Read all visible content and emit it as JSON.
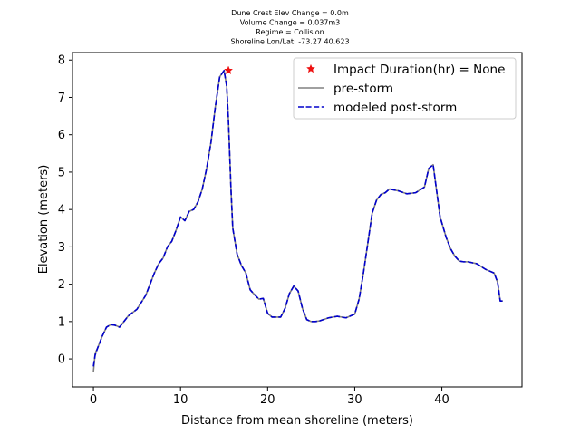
{
  "chart_data": {
    "type": "line",
    "title_lines": [
      "Dune Crest Elev Change = 0.0m",
      "Volume Change = 0.037m3",
      "Regime = Collision",
      "Shoreline Lon/Lat: -73.27 40.623"
    ],
    "xlabel": "Distance from mean shoreline (meters)",
    "ylabel": "Elevation (meters)",
    "xlim": [
      -2.4,
      49.2
    ],
    "ylim": [
      -0.75,
      8.2
    ],
    "xticks": [
      0,
      10,
      20,
      30,
      40
    ],
    "yticks": [
      0,
      1,
      2,
      3,
      4,
      5,
      6,
      7,
      8
    ],
    "grid": false,
    "legend_position": "top-right",
    "colors": {
      "pre": "#808080",
      "post": "#0000cc",
      "marker": "#ee1111"
    },
    "marker": {
      "name": "Impact Duration(hr) = None",
      "x": 15.5,
      "y": 7.72,
      "shape": "star"
    },
    "series": [
      {
        "name": "pre-storm",
        "style": "solid",
        "x": [
          0,
          0.2,
          0.5,
          1,
          1.5,
          2,
          2.5,
          3,
          3.5,
          4,
          5,
          6,
          7,
          7.5,
          8,
          8.5,
          9,
          9.5,
          10,
          10.5,
          11,
          11.5,
          12,
          12.5,
          13,
          13.5,
          14,
          14.5,
          15,
          15.3,
          15.5,
          15.8,
          16,
          16.5,
          17,
          17.5,
          18,
          18.5,
          19,
          19.5,
          20,
          20.5,
          21,
          21.5,
          22,
          22.5,
          23,
          23.5,
          24,
          24.5,
          25,
          25.5,
          26,
          27,
          28,
          29,
          30,
          30.5,
          31,
          31.5,
          32,
          32.5,
          33,
          33.5,
          34,
          35,
          36,
          37,
          38,
          38.5,
          39,
          39.4,
          39.8,
          40.5,
          41,
          41.5,
          42,
          42.5,
          43,
          44,
          45,
          45.5,
          46,
          46.4,
          46.7,
          47
        ],
        "y": [
          -0.35,
          0.15,
          0.3,
          0.6,
          0.85,
          0.92,
          0.9,
          0.85,
          1.0,
          1.15,
          1.33,
          1.7,
          2.3,
          2.55,
          2.7,
          3.0,
          3.15,
          3.45,
          3.8,
          3.7,
          3.95,
          4.0,
          4.2,
          4.55,
          5.1,
          5.8,
          6.75,
          7.55,
          7.72,
          7.3,
          6.4,
          4.5,
          3.5,
          2.8,
          2.5,
          2.3,
          1.85,
          1.72,
          1.6,
          1.62,
          1.22,
          1.12,
          1.12,
          1.12,
          1.35,
          1.75,
          1.95,
          1.82,
          1.35,
          1.05,
          1.0,
          1.0,
          1.02,
          1.1,
          1.14,
          1.1,
          1.2,
          1.6,
          2.3,
          3.1,
          3.9,
          4.25,
          4.4,
          4.45,
          4.55,
          4.5,
          4.42,
          4.45,
          4.6,
          5.1,
          5.2,
          4.5,
          3.8,
          3.25,
          2.95,
          2.75,
          2.62,
          2.6,
          2.6,
          2.55,
          2.4,
          2.35,
          2.3,
          2.05,
          1.55,
          1.55
        ]
      },
      {
        "name": "modeled post-storm",
        "style": "dashed",
        "x": [
          0,
          0.2,
          0.5,
          1,
          1.5,
          2,
          2.5,
          3,
          3.5,
          4,
          5,
          6,
          7,
          7.5,
          8,
          8.5,
          9,
          9.5,
          10,
          10.5,
          11,
          11.5,
          12,
          12.5,
          13,
          13.5,
          14,
          14.5,
          15,
          15.3,
          15.5,
          15.8,
          16,
          16.5,
          17,
          17.5,
          18,
          18.5,
          19,
          19.5,
          20,
          20.5,
          21,
          21.5,
          22,
          22.5,
          23,
          23.5,
          24,
          24.5,
          25,
          25.5,
          26,
          27,
          28,
          29,
          30,
          30.5,
          31,
          31.5,
          32,
          32.5,
          33,
          33.5,
          34,
          35,
          36,
          37,
          38,
          38.5,
          39,
          39.4,
          39.8,
          40.5,
          41,
          41.5,
          42,
          42.5,
          43,
          44,
          45,
          45.5,
          46,
          46.4,
          46.7,
          47
        ],
        "y": [
          -0.2,
          0.1,
          0.3,
          0.6,
          0.85,
          0.92,
          0.9,
          0.85,
          1.0,
          1.15,
          1.33,
          1.7,
          2.3,
          2.55,
          2.7,
          3.0,
          3.15,
          3.45,
          3.8,
          3.7,
          3.95,
          4.0,
          4.2,
          4.55,
          5.1,
          5.8,
          6.75,
          7.55,
          7.72,
          7.3,
          6.4,
          4.5,
          3.5,
          2.8,
          2.5,
          2.3,
          1.85,
          1.72,
          1.6,
          1.62,
          1.22,
          1.12,
          1.12,
          1.12,
          1.35,
          1.75,
          1.95,
          1.82,
          1.35,
          1.05,
          1.0,
          1.0,
          1.02,
          1.1,
          1.14,
          1.1,
          1.2,
          1.6,
          2.3,
          3.1,
          3.9,
          4.25,
          4.4,
          4.45,
          4.55,
          4.5,
          4.42,
          4.45,
          4.6,
          5.1,
          5.2,
          4.5,
          3.8,
          3.25,
          2.95,
          2.75,
          2.62,
          2.6,
          2.6,
          2.55,
          2.4,
          2.35,
          2.3,
          2.05,
          1.55,
          1.55
        ]
      }
    ]
  }
}
